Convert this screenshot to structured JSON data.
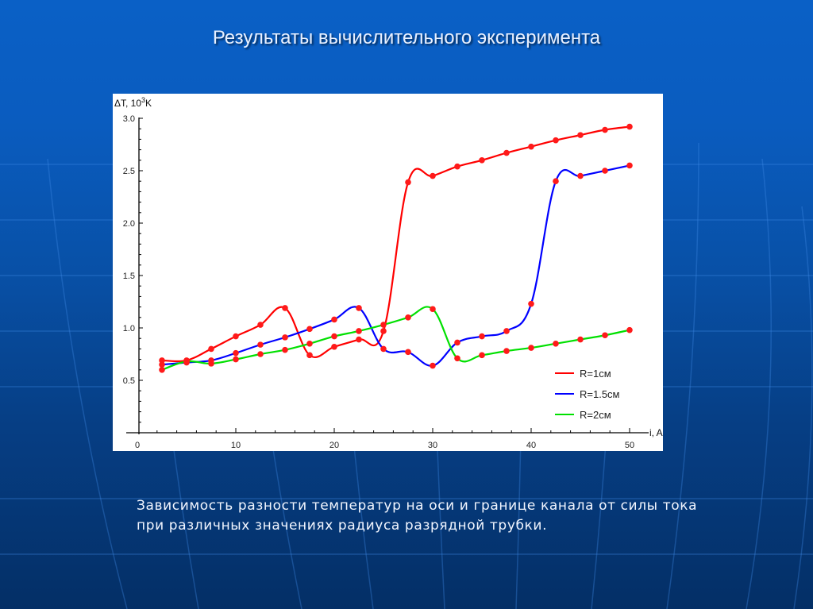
{
  "slide": {
    "title": "Результаты вычислительного эксперимента",
    "caption_lines": [
      "Зависимость разности температур на оси и границе канала от силы тока",
      "при различных значениях радиуса разрядной трубки."
    ],
    "colors": {
      "background_top": "#0a60c6",
      "background_bottom": "#042f66",
      "title_text": "#e8f0ff",
      "caption_text": "#f2f6ff"
    }
  },
  "chart_data": {
    "type": "line",
    "title": "",
    "xlabel": "i, A",
    "ylabel": "ΔT, 10³K",
    "ylabel_parts": {
      "base": "ΔT, 10",
      "sup": "3",
      "unit": "K"
    },
    "xlim": [
      0,
      50
    ],
    "ylim": [
      0,
      3.0
    ],
    "x_ticks": [
      0,
      10,
      20,
      30,
      40,
      50
    ],
    "x_tick_labels": [
      "0",
      "10",
      "20",
      "30",
      "40",
      "50"
    ],
    "y_ticks": [
      0.5,
      1.0,
      1.5,
      2.0,
      2.5,
      3.0
    ],
    "y_tick_labels": [
      "0.5",
      "1.0",
      "1.5",
      "2.0",
      "2.5",
      "3.0"
    ],
    "grid": false,
    "legend_position": "lower right",
    "marker_color": "#ff1a1a",
    "x": [
      2.5,
      5,
      7.5,
      10,
      12.5,
      15,
      17.5,
      20,
      22.5,
      25,
      27.5,
      30,
      32.5,
      35,
      37.5,
      40,
      42.5,
      45,
      47.5,
      50
    ],
    "series": [
      {
        "name": "R=1см",
        "color": "#ff0000",
        "values": [
          0.69,
          0.69,
          0.8,
          0.92,
          1.03,
          1.19,
          0.74,
          0.82,
          0.89,
          0.97,
          2.39,
          2.45,
          2.54,
          2.6,
          2.67,
          2.73,
          2.79,
          2.84,
          2.89,
          2.92
        ]
      },
      {
        "name": "R=1.5см",
        "color": "#0000ff",
        "values": [
          0.65,
          0.67,
          0.69,
          0.76,
          0.84,
          0.91,
          0.99,
          1.08,
          1.19,
          0.8,
          0.77,
          0.64,
          0.86,
          0.92,
          0.97,
          1.23,
          2.4,
          2.45,
          2.5,
          2.55
        ]
      },
      {
        "name": "R=2см",
        "color": "#00e000",
        "values": [
          0.6,
          0.68,
          0.66,
          0.7,
          0.75,
          0.79,
          0.85,
          0.92,
          0.97,
          1.03,
          1.1,
          1.18,
          0.71,
          0.74,
          0.78,
          0.81,
          0.85,
          0.89,
          0.93,
          0.98
        ]
      }
    ]
  }
}
